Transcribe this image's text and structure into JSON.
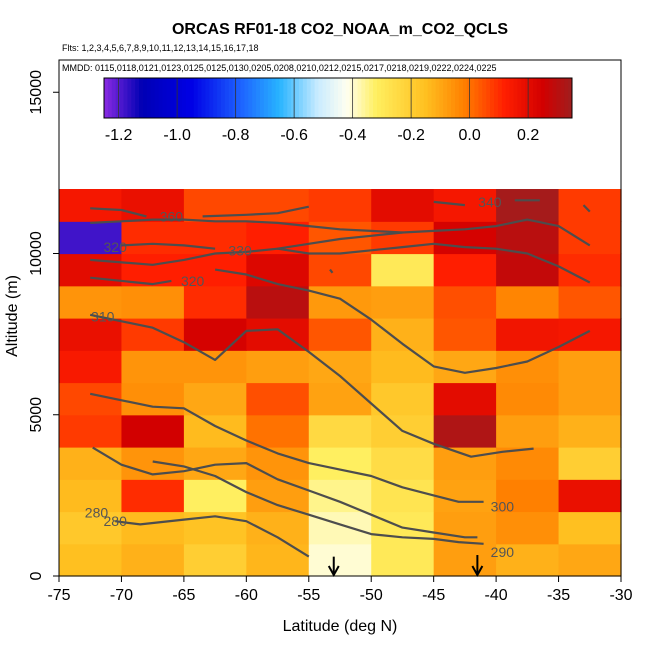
{
  "chart_data": {
    "type": "heatmap",
    "title": "ORCAS RF01-18 CO2_NOAA_m_CO2_QCLS",
    "flights_label": "Flts: 1,2,3,4,5,6,7,8,9,10,11,12,13,14,15,16,17,18",
    "dates_label": "MMDD: 0115,0118,0121,0123,0125,0125,0130,0205,0208,0210,0212,0215,0217,0218,0219,0222,0224,0225",
    "xlabel": "Latitude (deg N)",
    "ylabel": "Altitude (m)",
    "xlim": [
      -75,
      -30
    ],
    "ylim": [
      0,
      16000
    ],
    "x_ticks": [
      -75,
      -70,
      -65,
      -60,
      -55,
      -50,
      -45,
      -40,
      -35,
      -30
    ],
    "x_tick_labels": [
      "-75",
      "-70",
      "-65",
      "-60",
      "-55",
      "-50",
      "-45",
      "-40",
      "-35",
      "-30"
    ],
    "y_ticks": [
      0,
      5000,
      10000,
      15000
    ],
    "y_tick_labels": [
      "0",
      "5000",
      "10000",
      "15000"
    ],
    "colorbar": {
      "range": [
        -1.25,
        0.35
      ],
      "ticks": [
        -1.2,
        -1.0,
        -0.8,
        -0.6,
        -0.4,
        -0.2,
        0.0,
        0.2
      ],
      "tick_labels": [
        "-1.2",
        "-1.0",
        "-0.8",
        "-0.6",
        "-0.4",
        "-0.2",
        "0.0",
        "0.2"
      ],
      "stops": [
        [
          -1.25,
          "#8a2be2"
        ],
        [
          -1.12,
          "#0000b4"
        ],
        [
          -0.95,
          "#0000e6"
        ],
        [
          -0.78,
          "#1e64ff"
        ],
        [
          -0.65,
          "#28b4ff"
        ],
        [
          -0.52,
          "#c8ebff"
        ],
        [
          -0.42,
          "#fffff0"
        ],
        [
          -0.32,
          "#ffef60"
        ],
        [
          -0.15,
          "#ffc020"
        ],
        [
          -0.02,
          "#ff8000"
        ],
        [
          0.12,
          "#ff1e00"
        ],
        [
          0.25,
          "#d20000"
        ],
        [
          0.35,
          "#a01e1e"
        ]
      ]
    },
    "grid": {
      "lat_edges": [
        -75,
        -70,
        -65,
        -60,
        -55,
        -50,
        -45,
        -40,
        -35,
        -30
      ],
      "alt_edges": [
        0,
        1000,
        2000,
        3000,
        4000,
        5000,
        6000,
        7000,
        8000,
        9000,
        10000,
        11000,
        12000
      ],
      "values": [
        [
          -0.15,
          -0.12,
          -0.2,
          -0.13,
          -0.4,
          -0.3,
          -0.08,
          -0.12,
          -0.1,
          null
        ],
        [
          -0.18,
          -0.14,
          -0.16,
          -0.12,
          -0.38,
          -0.3,
          -0.08,
          -0.05,
          -0.15,
          null
        ],
        [
          -0.14,
          0.1,
          -0.32,
          -0.08,
          -0.35,
          -0.28,
          -0.09,
          -0.02,
          0.18,
          null
        ],
        [
          -0.12,
          -0.06,
          -0.1,
          -0.06,
          -0.32,
          -0.25,
          -0.08,
          -0.04,
          -0.2,
          null
        ],
        [
          0.08,
          0.25,
          -0.14,
          0.0,
          -0.24,
          -0.2,
          0.32,
          -0.08,
          -0.12,
          null
        ],
        [
          0.06,
          -0.05,
          -0.1,
          0.05,
          -0.09,
          -0.18,
          0.2,
          -0.04,
          -0.08,
          null
        ],
        [
          0.14,
          -0.06,
          -0.06,
          -0.08,
          -0.1,
          -0.14,
          -0.1,
          -0.05,
          -0.08,
          null
        ],
        [
          0.18,
          0.08,
          0.24,
          0.2,
          0.04,
          -0.12,
          0.04,
          0.16,
          0.15,
          0.2
        ],
        [
          -0.06,
          -0.05,
          0.1,
          0.3,
          -0.07,
          -0.08,
          0.05,
          -0.03,
          0.04,
          null
        ],
        [
          0.2,
          0.12,
          0.12,
          0.22,
          0.06,
          -0.3,
          0.12,
          0.28,
          0.1,
          null
        ],
        [
          -1.18,
          0.1,
          0.1,
          0.12,
          0.04,
          0.08,
          0.24,
          0.3,
          0.08,
          null
        ],
        [
          0.15,
          0.18,
          0.06,
          0.06,
          0.08,
          0.2,
          0.15,
          0.34,
          0.08,
          null
        ]
      ]
    },
    "contours": [
      {
        "label": "280",
        "label_at": [
          -72.0,
          1970
        ],
        "points": [
          [
            -72.3,
            3980
          ],
          [
            -70.0,
            3450
          ],
          [
            -67.5,
            3150
          ],
          [
            -65.0,
            3250
          ],
          [
            -62.5,
            3450
          ],
          [
            -60.0,
            3500
          ],
          [
            -57.5,
            3000
          ],
          [
            -55.0,
            2650
          ],
          [
            -52.5,
            2300
          ],
          [
            -50.0,
            1900
          ],
          [
            -47.5,
            1500
          ],
          [
            -45.0,
            1350
          ],
          [
            -42.5,
            1200
          ],
          [
            -41.5,
            1200
          ]
        ]
      },
      {
        "label": "280",
        "label_at": [
          -70.5,
          1700
        ],
        "points": [
          [
            -70.5,
            1700
          ],
          [
            -68.5,
            1600
          ],
          [
            -65.0,
            1750
          ],
          [
            -62.5,
            1850
          ],
          [
            -60.0,
            1700
          ],
          [
            -57.5,
            1200
          ],
          [
            -55.0,
            600
          ]
        ]
      },
      {
        "label": "290",
        "label_at": [
          -39.5,
          750
        ],
        "points": [
          [
            -41.0,
            1000
          ],
          [
            -43.0,
            1050
          ],
          [
            -45.0,
            1150
          ],
          [
            -47.5,
            1200
          ],
          [
            -50.0,
            1300
          ],
          [
            -52.5,
            1600
          ],
          [
            -55.0,
            1900
          ],
          [
            -57.5,
            2200
          ],
          [
            -60.0,
            2600
          ],
          [
            -62.5,
            3100
          ],
          [
            -65.0,
            3400
          ],
          [
            -67.5,
            3550
          ]
        ]
      },
      {
        "label": "300",
        "label_at": [
          -39.5,
          2150
        ],
        "points": [
          [
            -41.0,
            2300
          ],
          [
            -43.0,
            2300
          ],
          [
            -45.0,
            2500
          ],
          [
            -47.5,
            2750
          ],
          [
            -50.0,
            3100
          ],
          [
            -52.5,
            3300
          ],
          [
            -55.0,
            3500
          ],
          [
            -57.5,
            3800
          ],
          [
            -60.0,
            4200
          ],
          [
            -62.5,
            4650
          ],
          [
            -65.0,
            5200
          ],
          [
            -67.5,
            5250
          ],
          [
            -72.5,
            5650
          ]
        ]
      },
      {
        "label": "",
        "label_at": null,
        "points": [
          [
            -37.0,
            3950
          ],
          [
            -39.5,
            3850
          ],
          [
            -42.0,
            3700
          ],
          [
            -45.0,
            4100
          ],
          [
            -47.5,
            4500
          ],
          [
            -50.0,
            5350
          ],
          [
            -52.5,
            6200
          ],
          [
            -55.0,
            6950
          ],
          [
            -57.5,
            7650
          ],
          [
            -60.0,
            7600
          ],
          [
            -62.5,
            6700
          ],
          [
            -65.0,
            7250
          ],
          [
            -67.5,
            7700
          ],
          [
            -72.5,
            8100
          ]
        ]
      },
      {
        "label": "310",
        "label_at": [
          -71.5,
          8050
        ],
        "points": [
          [
            -32.5,
            7600
          ],
          [
            -35.0,
            7100
          ],
          [
            -37.5,
            6650
          ],
          [
            -40.0,
            6450
          ],
          [
            -42.5,
            6300
          ],
          [
            -45.0,
            6500
          ],
          [
            -47.5,
            7200
          ],
          [
            -50.0,
            7950
          ],
          [
            -52.5,
            8600
          ],
          [
            -55.0,
            8850
          ],
          [
            -57.5,
            9050
          ],
          [
            -60.0,
            9350
          ],
          [
            -62.5,
            9500
          ]
        ]
      },
      {
        "label": "320",
        "label_at": [
          -64.3,
          9150
        ],
        "points": [
          [
            -66.0,
            9150
          ],
          [
            -67.5,
            9050
          ],
          [
            -72.5,
            9250
          ]
        ]
      },
      {
        "label": "320",
        "label_at": [
          -70.5,
          10200
        ],
        "points": [
          [
            -32.5,
            9100
          ],
          [
            -35.0,
            9600
          ],
          [
            -37.5,
            10000
          ],
          [
            -40.0,
            10150
          ],
          [
            -42.5,
            10200
          ],
          [
            -45.0,
            10300
          ],
          [
            -47.5,
            10200
          ],
          [
            -50.0,
            10100
          ],
          [
            -52.5,
            10000
          ],
          [
            -55.0,
            10000
          ],
          [
            -57.5,
            10150
          ],
          [
            -60.0,
            10050
          ],
          [
            -62.5,
            10000
          ],
          [
            -65.0,
            9800
          ],
          [
            -67.5,
            9650
          ],
          [
            -72.5,
            9800
          ]
        ]
      },
      {
        "label": "330",
        "label_at": [
          -60.5,
          10100
        ],
        "points": [
          [
            -32.5,
            10250
          ],
          [
            -35.0,
            10850
          ],
          [
            -37.5,
            11050
          ],
          [
            -40.0,
            10850
          ],
          [
            -42.5,
            10750
          ],
          [
            -45.0,
            10700
          ],
          [
            -47.5,
            10650
          ],
          [
            -50.0,
            10550
          ],
          [
            -52.5,
            10450
          ],
          [
            -55.0,
            10300
          ],
          [
            -57.5,
            10150
          ]
        ]
      },
      {
        "label": "",
        "label_at": null,
        "points": [
          [
            -62.5,
            10150
          ],
          [
            -65.0,
            10250
          ],
          [
            -67.5,
            10300
          ],
          [
            -70.0,
            10250
          ]
        ]
      },
      {
        "label": "360",
        "label_at": [
          -66.0,
          11150
        ],
        "points": [
          [
            -72.5,
            11400
          ],
          [
            -70.0,
            11350
          ],
          [
            -68.0,
            11150
          ]
        ]
      },
      {
        "label": "",
        "label_at": null,
        "points": [
          [
            -63.5,
            11150
          ],
          [
            -60.0,
            11200
          ],
          [
            -57.5,
            11250
          ],
          [
            -55.0,
            11450
          ]
        ]
      },
      {
        "label": "",
        "label_at": null,
        "points": [
          [
            -72.5,
            10950
          ],
          [
            -70.0,
            11000
          ],
          [
            -67.5,
            11050
          ],
          [
            -65.0,
            11050
          ],
          [
            -62.5,
            11000
          ],
          [
            -60.0,
            11000
          ],
          [
            -57.5,
            10950
          ],
          [
            -55.0,
            10850
          ],
          [
            -52.5,
            10750
          ],
          [
            -50.0,
            10700
          ],
          [
            -47.5,
            10650
          ]
        ]
      },
      {
        "label": "340",
        "label_at": [
          -40.5,
          11600
        ],
        "points": [
          [
            -45.0,
            11600
          ],
          [
            -42.5,
            11500
          ]
        ]
      },
      {
        "label": "",
        "label_at": null,
        "points": [
          [
            -38.5,
            11650
          ],
          [
            -36.5,
            11650
          ]
        ]
      },
      {
        "label": "",
        "label_at": null,
        "points": [
          [
            -33.0,
            11500
          ],
          [
            -32.5,
            11300
          ]
        ]
      },
      {
        "label": "",
        "label_at": null,
        "points": [
          [
            -53.3,
            9500
          ],
          [
            -53.1,
            9400
          ]
        ]
      }
    ],
    "arrows": [
      {
        "lat": -53.0,
        "from_alt": 600,
        "to_alt": 0
      },
      {
        "lat": -41.5,
        "from_alt": 650,
        "to_alt": 0
      }
    ]
  }
}
